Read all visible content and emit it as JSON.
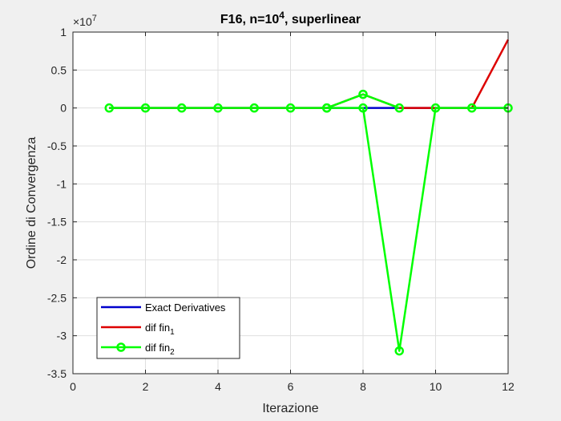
{
  "chart_data": {
    "type": "line",
    "title": {
      "main": "F16, n=10",
      "sup": "4",
      "rest": ", superlinear"
    },
    "xlabel": "Iterazione",
    "ylabel": "Ordine di Convergenza",
    "xlim": [
      0,
      12
    ],
    "ylim": [
      -35000000,
      10000000
    ],
    "xticks": [
      0,
      2,
      4,
      6,
      8,
      10,
      12
    ],
    "xtick_labels": [
      "0",
      "2",
      "4",
      "6",
      "8",
      "10",
      "12"
    ],
    "yticks": [
      -35000000,
      -30000000,
      -25000000,
      -20000000,
      -15000000,
      -10000000,
      -5000000,
      0,
      5000000,
      10000000
    ],
    "ytick_labels": [
      "-3.5",
      "-3",
      "-2.5",
      "-2",
      "-1.5",
      "-1",
      "-0.5",
      "0",
      "0.5",
      "1"
    ],
    "exponent_label": {
      "base": "×10",
      "exp": "7"
    },
    "grid": true,
    "legend_position": "bottom-left",
    "series": [
      {
        "name": "Exact Derivatives",
        "color": "#0000cc",
        "marker": "none",
        "x": [
          1,
          2,
          3,
          4,
          5,
          6,
          7,
          8,
          9,
          10,
          11,
          12
        ],
        "y": [
          0,
          0,
          0,
          0,
          0,
          0,
          0,
          0,
          0,
          0,
          0,
          0
        ]
      },
      {
        "name": "dif fin",
        "sub": "1",
        "color": "#dd0000",
        "marker": "none",
        "x": [
          1,
          2,
          3,
          4,
          5,
          6,
          7,
          8,
          9,
          10,
          11,
          12
        ],
        "y": [
          0,
          0,
          0,
          0,
          0,
          0,
          0,
          1800000,
          0,
          0,
          0,
          9000000
        ]
      },
      {
        "name": "dif fin",
        "sub": "2",
        "color": "#00ff00",
        "marker": "circle",
        "x": [
          1,
          2,
          3,
          4,
          5,
          6,
          7,
          8,
          9,
          10,
          11,
          12
        ],
        "y": [
          0,
          0,
          0,
          0,
          0,
          0,
          0,
          0,
          -32000000,
          0,
          0,
          0
        ]
      },
      {
        "name": "dif fin",
        "sub": "2",
        "color": "#00ff00",
        "marker": "circle",
        "legend": false,
        "x": [
          7,
          8,
          9
        ],
        "y": [
          0,
          1800000,
          0
        ]
      }
    ]
  }
}
